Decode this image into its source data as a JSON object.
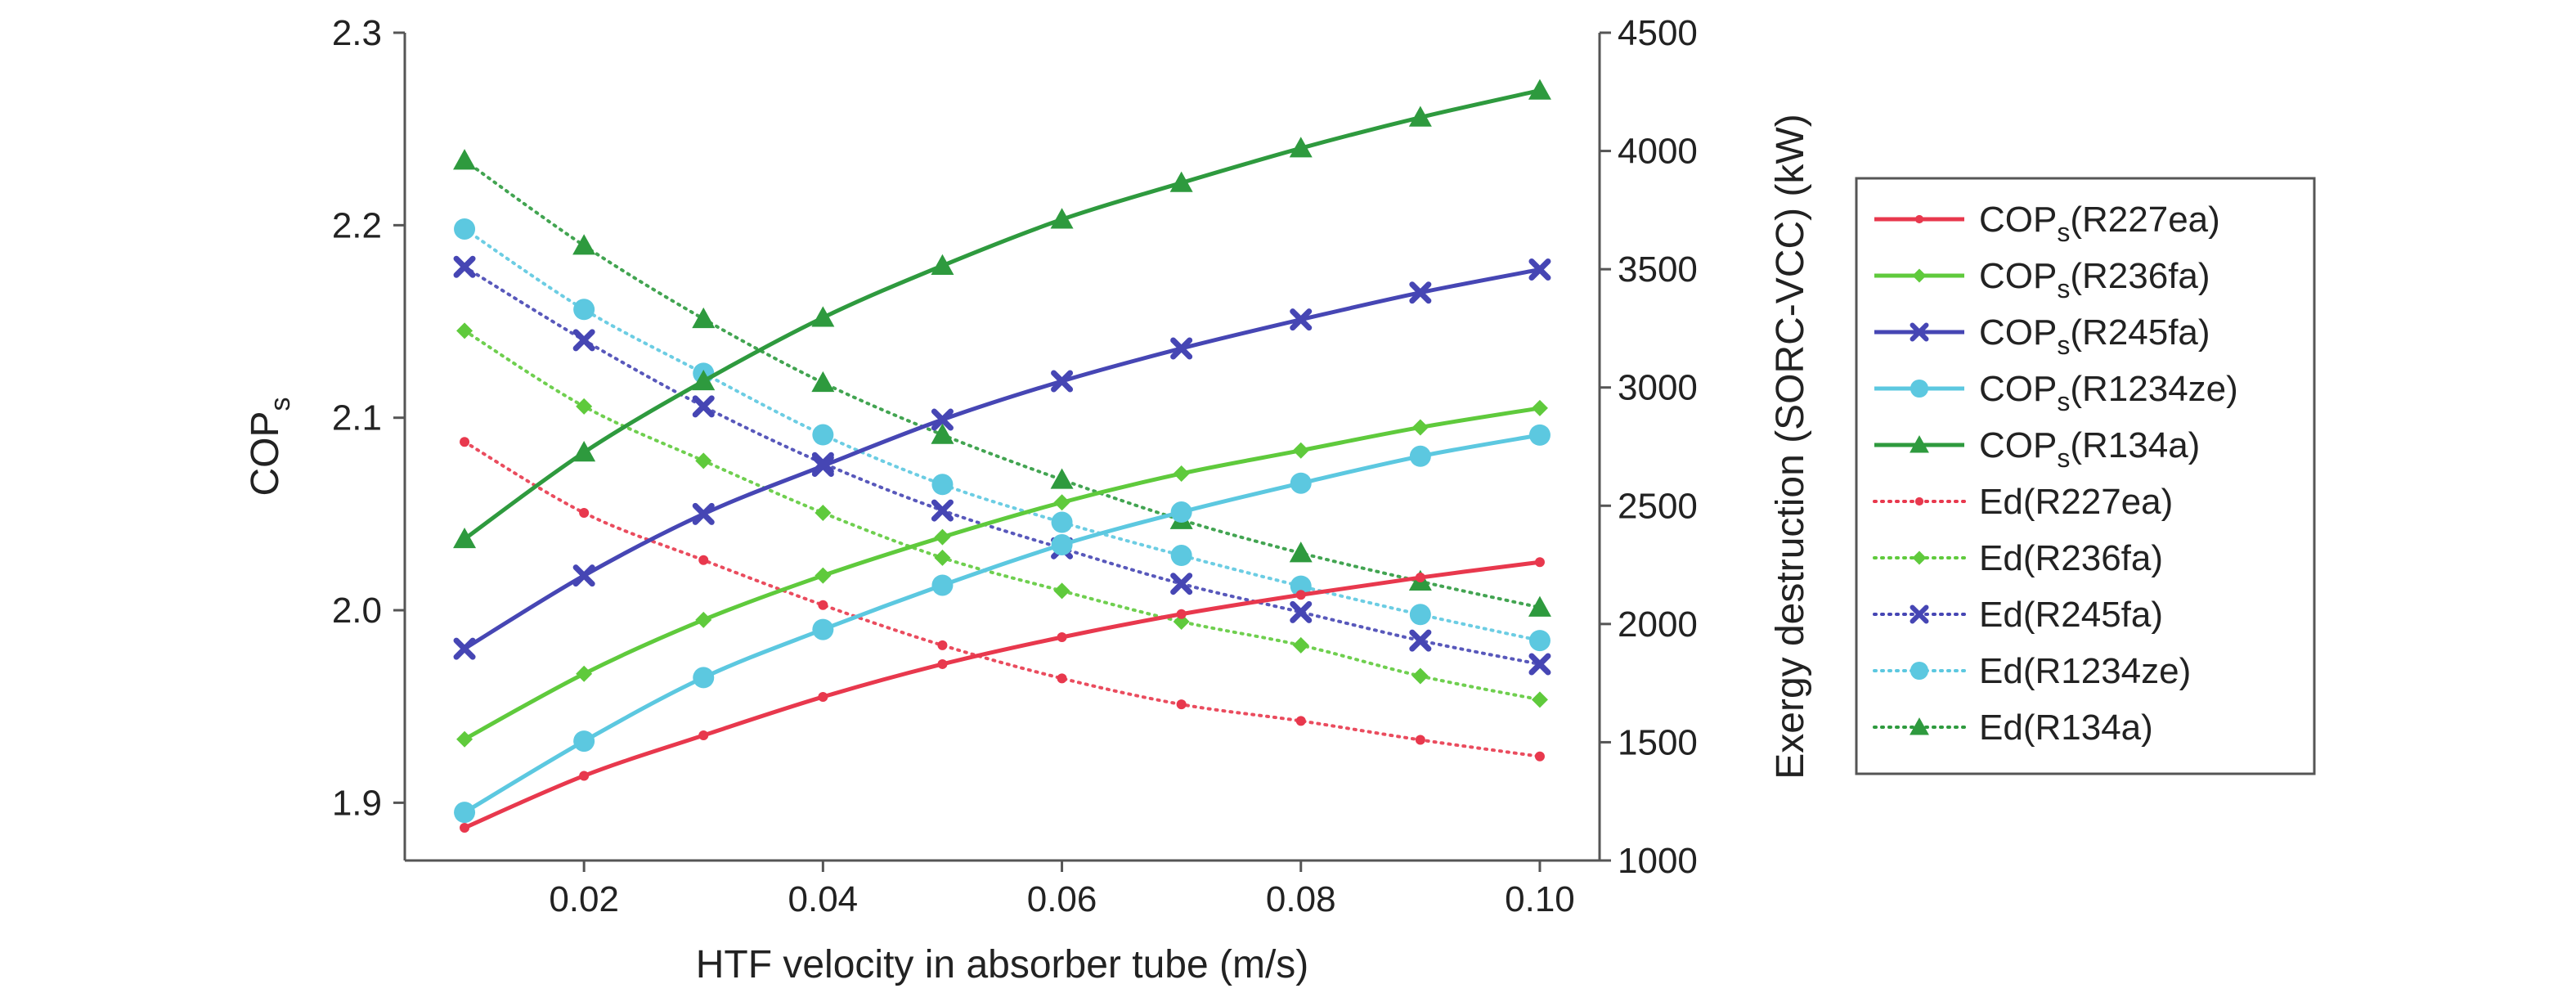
{
  "chart_data": {
    "type": "line",
    "title": "",
    "xlabel": "HTF velocity in absorber tube (m/s)",
    "ylabel": {
      "main": "COP",
      "sub": "s"
    },
    "y2label": "Exergy destruction (SORC-VCC) (kW)",
    "xlim": [
      0.005,
      0.105
    ],
    "ylim": [
      1.87,
      2.3
    ],
    "y2lim": [
      1000,
      4500
    ],
    "x_ticks": [
      0.02,
      0.04,
      0.06,
      0.08,
      0.1
    ],
    "x_tick_labels": [
      "0.02",
      "0.04",
      "0.06",
      "0.08",
      "0.10"
    ],
    "y_ticks": [
      1.9,
      2.0,
      2.1,
      2.2,
      2.3
    ],
    "y_tick_labels": [
      "1.9",
      "2.0",
      "2.1",
      "2.2",
      "2.3"
    ],
    "y2_ticks": [
      1000,
      1500,
      2000,
      2500,
      3000,
      3500,
      4000,
      4500
    ],
    "y2_tick_labels": [
      "1000",
      "1500",
      "2000",
      "2500",
      "3000",
      "3500",
      "4000",
      "4500"
    ],
    "grid": false,
    "legend_position": "right",
    "x": [
      0.01,
      0.02,
      0.03,
      0.04,
      0.05,
      0.06,
      0.07,
      0.08,
      0.09,
      0.1
    ],
    "series": [
      {
        "name": "(R227ea)",
        "prefix": "COP",
        "sub": "s",
        "axis": "left",
        "style": "solid",
        "marker": "dot",
        "color": "#e8384d",
        "values": [
          1.887,
          1.914,
          1.935,
          1.955,
          1.972,
          1.986,
          1.998,
          2.008,
          2.017,
          2.025
        ]
      },
      {
        "name": "(R236fa)",
        "prefix": "COP",
        "sub": "s",
        "axis": "left",
        "style": "solid",
        "marker": "diamond",
        "color": "#5fca3c",
        "values": [
          1.933,
          1.967,
          1.995,
          2.018,
          2.038,
          2.056,
          2.071,
          2.083,
          2.095,
          2.105
        ]
      },
      {
        "name": "(R245fa)",
        "prefix": "COP",
        "sub": "s",
        "axis": "left",
        "style": "solid",
        "marker": "x",
        "color": "#4646b4",
        "values": [
          1.98,
          2.018,
          2.05,
          2.075,
          2.099,
          2.119,
          2.136,
          2.151,
          2.165,
          2.177
        ]
      },
      {
        "name": "(R1234ze)",
        "prefix": "COP",
        "sub": "s",
        "axis": "left",
        "style": "solid",
        "marker": "circle",
        "color": "#5cc8e0",
        "values": [
          1.895,
          1.932,
          1.965,
          1.99,
          2.013,
          2.034,
          2.051,
          2.066,
          2.08,
          2.091
        ]
      },
      {
        "name": "(R134a)",
        "prefix": "COP",
        "sub": "s",
        "axis": "left",
        "style": "solid",
        "marker": "triangle",
        "color": "#2e9a3e",
        "values": [
          2.037,
          2.082,
          2.119,
          2.152,
          2.179,
          2.203,
          2.222,
          2.24,
          2.256,
          2.27
        ]
      },
      {
        "name": "Ed(R227ea)",
        "axis": "right",
        "style": "dotted",
        "marker": "dot",
        "color": "#e8384d",
        "values": [
          2770,
          2470,
          2270,
          2080,
          1910,
          1770,
          1660,
          1590,
          1510,
          1440
        ]
      },
      {
        "name": "Ed(R236fa)",
        "axis": "right",
        "style": "dotted",
        "marker": "diamond",
        "color": "#5fca3c",
        "values": [
          3240,
          2920,
          2690,
          2470,
          2280,
          2140,
          2010,
          1910,
          1780,
          1680
        ]
      },
      {
        "name": "Ed(R245fa)",
        "axis": "right",
        "style": "dotted",
        "marker": "x",
        "color": "#4646b4",
        "values": [
          3510,
          3200,
          2920,
          2680,
          2480,
          2320,
          2170,
          2050,
          1930,
          1830
        ]
      },
      {
        "name": "Ed(R1234ze)",
        "axis": "right",
        "style": "dotted",
        "marker": "circle",
        "color": "#5cc8e0",
        "values": [
          3670,
          3330,
          3060,
          2800,
          2590,
          2430,
          2290,
          2160,
          2040,
          1930
        ]
      },
      {
        "name": "Ed(R134a)",
        "axis": "right",
        "style": "dotted",
        "marker": "triangle",
        "color": "#2e9a3e",
        "values": [
          3960,
          3600,
          3290,
          3020,
          2800,
          2610,
          2440,
          2300,
          2180,
          2070
        ]
      }
    ]
  }
}
